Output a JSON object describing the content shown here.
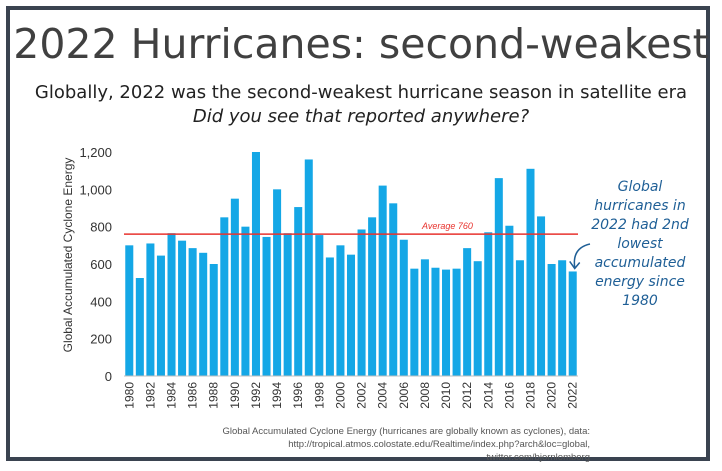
{
  "title": "2022 Hurricanes: second-weakest",
  "subtitle": "Globally, 2022 was the second-weakest hurricane season in satellite era",
  "subtitle2": "Did you see that reported anywhere?",
  "annotation": "Global hurricanes in 2022 had 2nd lowest accumulated energy since 1980",
  "source_line1": "Global Accumulated Cyclone Energy (hurricanes are globally known as cyclones), data:",
  "source_line2": "http://tropical.atmos.colostate.edu/Realtime/index.php?arch&loc=global, twitter.com/bjornlomborg",
  "colors": {
    "bar": "#14a7e6",
    "average_line": "#e8332e",
    "annotation": "#1f5f96",
    "frame": "#3a4350"
  },
  "chart_data": {
    "type": "bar",
    "ylabel": "Global Accumulated Cyclone Energy",
    "xlabel": "",
    "ylim": [
      0,
      1200
    ],
    "yticks": [
      "0",
      "200",
      "400",
      "600",
      "800",
      "1,000",
      "1,200"
    ],
    "grid": false,
    "categories": [
      "1980",
      "1981",
      "1982",
      "1983",
      "1984",
      "1985",
      "1986",
      "1987",
      "1988",
      "1989",
      "1990",
      "1991",
      "1992",
      "1993",
      "1994",
      "1995",
      "1996",
      "1997",
      "1998",
      "1999",
      "2000",
      "2001",
      "2002",
      "2003",
      "2004",
      "2005",
      "2006",
      "2007",
      "2008",
      "2009",
      "2010",
      "2011",
      "2012",
      "2013",
      "2014",
      "2015",
      "2016",
      "2017",
      "2018",
      "2019",
      "2020",
      "2021",
      "2022"
    ],
    "xtick_labels": [
      "1980",
      "1982",
      "1984",
      "1986",
      "1988",
      "1990",
      "1992",
      "1994",
      "1996",
      "1998",
      "2000",
      "2002",
      "2004",
      "2006",
      "2008",
      "2010",
      "2012",
      "2014",
      "2016",
      "2018",
      "2020",
      "2022"
    ],
    "values": [
      700,
      525,
      710,
      645,
      765,
      725,
      685,
      660,
      600,
      850,
      950,
      800,
      1200,
      745,
      1000,
      765,
      905,
      1160,
      755,
      635,
      700,
      650,
      785,
      850,
      1020,
      925,
      730,
      575,
      625,
      580,
      570,
      575,
      685,
      615,
      770,
      1060,
      805,
      620,
      1110,
      855,
      600,
      620,
      560
    ],
    "reference_line": {
      "value": 760,
      "label": "Average 760"
    }
  }
}
